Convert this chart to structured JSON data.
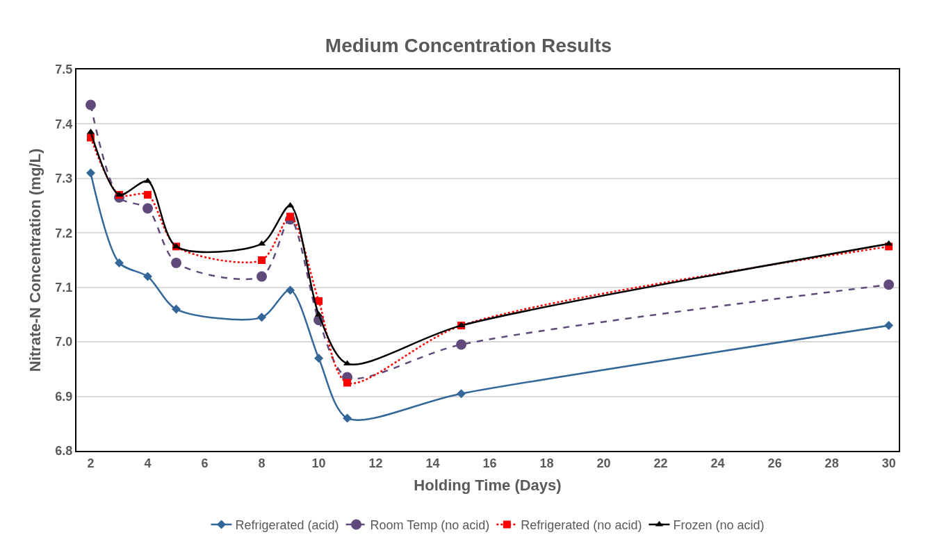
{
  "chart_data": {
    "type": "line",
    "title": "Medium Concentration Results",
    "xlabel": "Holding Time (Days)",
    "ylabel": "Nitrate-N Concentration (mg/L)",
    "x": [
      2,
      3,
      4,
      5,
      8,
      9,
      10,
      11,
      15,
      30
    ],
    "series": [
      {
        "name": "Refrigerated (acid)",
        "color": "#336699",
        "marker": "diamond",
        "line_style": "solid",
        "values": [
          7.31,
          7.145,
          7.12,
          7.06,
          7.045,
          7.095,
          6.97,
          6.86,
          6.905,
          7.03
        ]
      },
      {
        "name": "Room Temp (no acid)",
        "color": "#604a7b",
        "marker": "circle",
        "line_style": "dashed",
        "values": [
          7.435,
          7.265,
          7.245,
          7.145,
          7.12,
          7.225,
          7.04,
          6.935,
          6.995,
          7.105
        ]
      },
      {
        "name": "Refrigerated (no acid)",
        "color": "#ff0000",
        "marker": "square",
        "line_style": "dotted",
        "values": [
          7.375,
          7.27,
          7.27,
          7.175,
          7.15,
          7.23,
          7.075,
          6.925,
          7.03,
          7.175
        ]
      },
      {
        "name": "Frozen (no acid)",
        "color": "#000000",
        "marker": "triangle",
        "line_style": "solid",
        "values": [
          7.385,
          7.27,
          7.295,
          7.175,
          7.18,
          7.25,
          7.05,
          6.96,
          7.03,
          7.18
        ]
      }
    ],
    "xlim": [
      1.5,
      30.35
    ],
    "xticks": [
      2,
      4,
      6,
      8,
      10,
      12,
      14,
      16,
      18,
      20,
      22,
      24,
      26,
      28,
      30
    ],
    "ylim": [
      6.8,
      7.5
    ],
    "yticks": [
      {
        "value": 6.8,
        "label": "6.8"
      },
      {
        "value": 6.9,
        "label": "6.9"
      },
      {
        "value": 7.0,
        "label": "7.0"
      },
      {
        "value": 7.1,
        "label": "7.1"
      },
      {
        "value": 7.2,
        "label": "7.2"
      },
      {
        "value": 7.3,
        "label": "7.3"
      },
      {
        "value": 7.4,
        "label": "7.4"
      },
      {
        "value": 7.5,
        "label": "7.5"
      }
    ],
    "grid": "y",
    "legend": "bottom"
  }
}
